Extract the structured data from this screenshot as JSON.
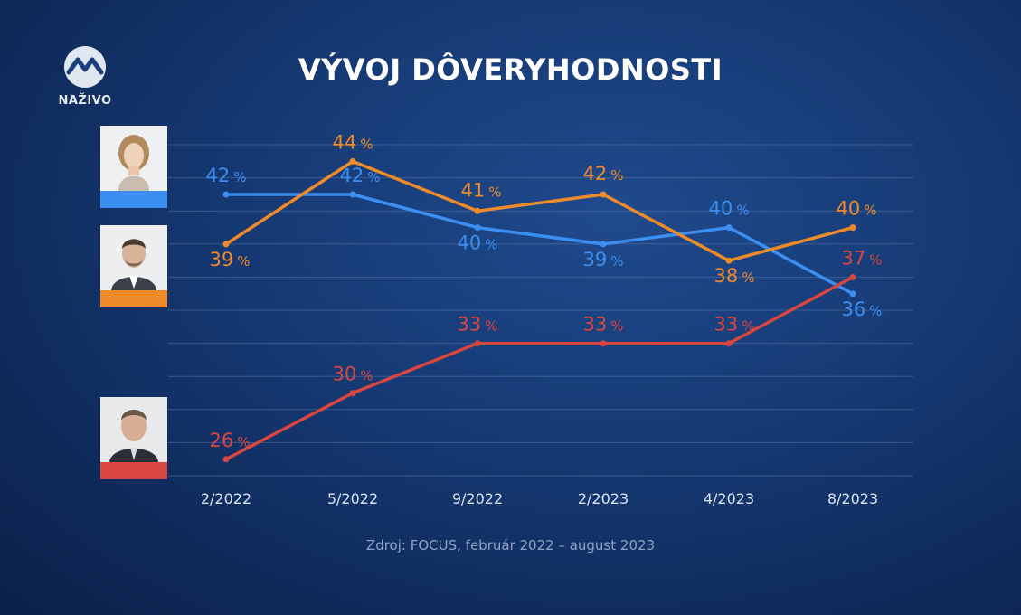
{
  "header": {
    "logo_text": "NAŽIVO",
    "logo_icon": "markiza-m-icon",
    "title": "VÝVOJ DÔVERYHODNOSTI"
  },
  "candidates": [
    {
      "portrait_icon": "woman-portrait-icon",
      "color": "#3c8ef0"
    },
    {
      "portrait_icon": "man-portrait-icon",
      "color": "#ee8a2a"
    },
    {
      "portrait_icon": "man-portrait-icon",
      "color": "#d94641"
    }
  ],
  "chart_data": {
    "type": "line",
    "categories": [
      "2/2022",
      "5/2022",
      "9/2022",
      "2/2023",
      "4/2023",
      "8/2023"
    ],
    "unit": "%",
    "series": [
      {
        "color": "#3c8ef0",
        "values": [
          42,
          42,
          40,
          39,
          40,
          36
        ]
      },
      {
        "color": "#ee8a2a",
        "values": [
          39,
          44,
          41,
          42,
          38,
          40
        ]
      },
      {
        "color": "#d94641",
        "values": [
          26,
          30,
          33,
          33,
          33,
          37
        ]
      }
    ],
    "ylim": [
      24,
      45
    ],
    "grid": true
  },
  "footer": {
    "source": "Zdroj: FOCUS, február 2022 – august 2023"
  }
}
